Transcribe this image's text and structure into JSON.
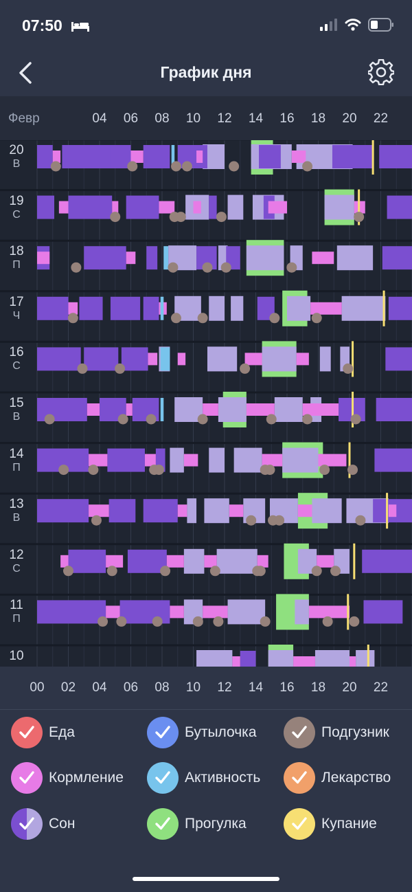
{
  "status": {
    "time": "07:50"
  },
  "header": {
    "title": "График дня",
    "back_icon": "chevron-left-icon",
    "settings_icon": "gear-icon"
  },
  "chart": {
    "month_label": "Февр",
    "top_ticks": [
      "04",
      "06",
      "08",
      "10",
      "12",
      "14",
      "16",
      "18",
      "20",
      "22"
    ],
    "bottom_ticks": [
      "00",
      "02",
      "04",
      "06",
      "08",
      "10",
      "12",
      "14",
      "16",
      "18",
      "20",
      "22"
    ],
    "rows": [
      {
        "day": "20",
        "weekday": "В"
      },
      {
        "day": "19",
        "weekday": "С"
      },
      {
        "day": "18",
        "weekday": "П"
      },
      {
        "day": "17",
        "weekday": "Ч"
      },
      {
        "day": "16",
        "weekday": "С"
      },
      {
        "day": "15",
        "weekday": "В"
      },
      {
        "day": "14",
        "weekday": "П"
      },
      {
        "day": "13",
        "weekday": "В"
      },
      {
        "day": "12",
        "weekday": "С"
      },
      {
        "day": "11",
        "weekday": "П"
      },
      {
        "day": "10",
        "weekday": ""
      }
    ],
    "colors": {
      "sleep": "#7b4fd0",
      "sleep_light": "#b2a6e0",
      "feeding": "#e77be6",
      "walk": "#8fe07f",
      "activity": "#78c4ec",
      "bath": "#f7df73",
      "diaper": "#96827b"
    }
  },
  "legend": [
    {
      "label": "Еда",
      "color": "#ec6a6e",
      "checked": true
    },
    {
      "label": "Бутылочка",
      "color": "#6a8ef0",
      "checked": true
    },
    {
      "label": "Подгузник",
      "color": "#96827b",
      "checked": true
    },
    {
      "label": "Кормление",
      "color": "#e77be6",
      "checked": true
    },
    {
      "label": "Активность",
      "color": "#78c4ec",
      "checked": true
    },
    {
      "label": "Лекарство",
      "color": "#f1a06a",
      "checked": true
    },
    {
      "label": "Сон",
      "color": "#7b4fd0",
      "color2": "#b2a6e0",
      "checked": true
    },
    {
      "label": "Прогулка",
      "color": "#8fe07f",
      "checked": true
    },
    {
      "label": "Купание",
      "color": "#f7df73",
      "checked": true
    }
  ]
}
